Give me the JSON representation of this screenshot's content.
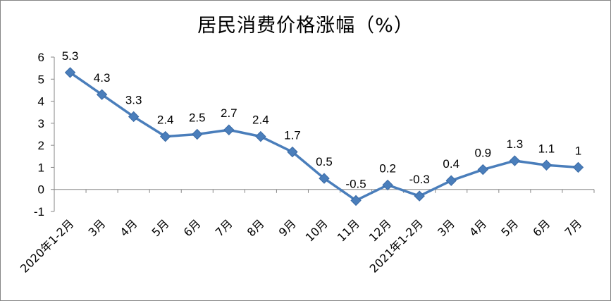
{
  "chart_data": {
    "type": "line",
    "title": "居民消费价格涨幅（%）",
    "xlabel": "",
    "ylabel": "",
    "categories": [
      "2020年1-2月",
      "3月",
      "4月",
      "5月",
      "6月",
      "7月",
      "8月",
      "9月",
      "10月",
      "11月",
      "12月",
      "2021年1-2月",
      "3月",
      "4月",
      "5月",
      "6月",
      "7月"
    ],
    "series": [
      {
        "values": [
          5.3,
          4.3,
          3.3,
          2.4,
          2.5,
          2.7,
          2.4,
          1.7,
          0.5,
          -0.5,
          0.2,
          -0.3,
          0.4,
          0.9,
          1.3,
          1.1,
          1
        ]
      }
    ],
    "data_labels": [
      "5.3",
      "4.3",
      "3.3",
      "2.4",
      "2.5",
      "2.7",
      "2.4",
      "1.7",
      "0.5",
      "-0.5",
      "0.2",
      "-0.3",
      "0.4",
      "0.9",
      "1.3",
      "1.1",
      "1"
    ],
    "yticks": [
      "6",
      "5",
      "4",
      "3",
      "2",
      "1",
      "0",
      "-1"
    ],
    "ylim": [
      -1,
      6
    ],
    "grid": false,
    "legend": "none",
    "line_color": "#4a7ebb",
    "marker": "diamond"
  }
}
